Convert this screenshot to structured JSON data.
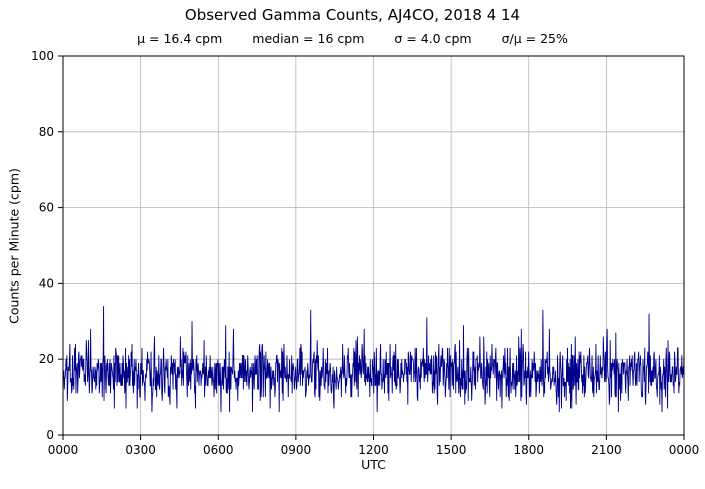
{
  "chart_data": {
    "type": "line",
    "title": "Observed Gamma Counts, AJ4CO, 2018 4 14",
    "stats": {
      "mu": "μ = 16.4 cpm",
      "median": "median = 16 cpm",
      "sigma": "σ = 4.0 cpm",
      "ratio": "σ/μ = 25%"
    },
    "xlabel": "UTC",
    "ylabel": "Counts per Minute (cpm)",
    "x_tick_labels": [
      "0000",
      "0300",
      "0600",
      "0900",
      "1200",
      "1500",
      "1800",
      "2100",
      "0000"
    ],
    "y_tick_labels": [
      "0",
      "20",
      "40",
      "60",
      "80",
      "100"
    ],
    "ylim": [
      0,
      100
    ],
    "xlim_hours": [
      0,
      24
    ],
    "grid": true,
    "legend": "none",
    "n_points": 1440,
    "noise_model": {
      "mean": 16.4,
      "sigma": 4.0,
      "clip_min": 6,
      "clip_max": 28,
      "seed": 20180414,
      "integer_counts": true
    },
    "spikes": [
      {
        "t": 0.065,
        "v": 34
      },
      {
        "t": 0.208,
        "v": 30
      },
      {
        "t": 0.262,
        "v": 29
      },
      {
        "t": 0.399,
        "v": 33
      },
      {
        "t": 0.586,
        "v": 31
      },
      {
        "t": 0.645,
        "v": 29
      },
      {
        "t": 0.773,
        "v": 33
      },
      {
        "t": 0.876,
        "v": 28
      },
      {
        "t": 0.944,
        "v": 32
      }
    ],
    "line_color": "#00008b",
    "grid_color": "#b3b3b3",
    "axis_color": "#000000",
    "background_color": "#ffffff"
  }
}
